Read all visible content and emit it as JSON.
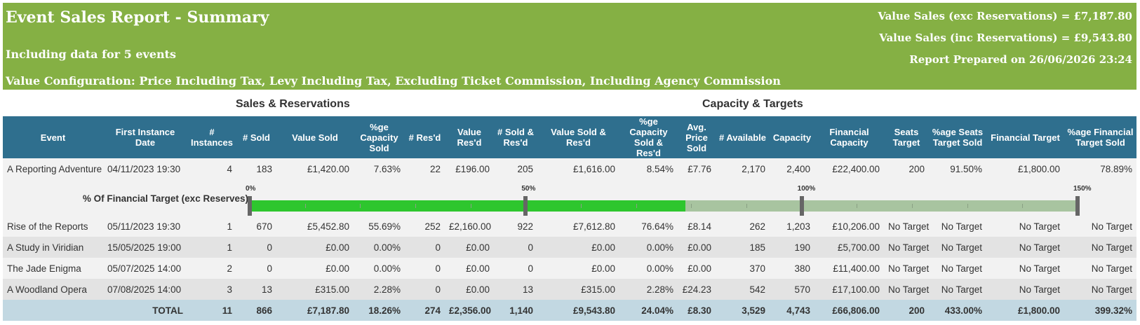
{
  "banner": {
    "title": "Event Sales Report - Summary",
    "subtitle": "Including data for 5 events",
    "config": "Value Configuration: Price Including Tax, Levy Including Tax, Excluding Ticket Commission, Including Agency Commission",
    "value_exc": "Value Sales (exc Reservations) = £7,187.80",
    "value_inc": "Value Sales (inc Reservations) = £9,543.80",
    "prepared": "Report Prepared on 26/06/2026 23:24",
    "color": "#85b044"
  },
  "groups": {
    "sales": "Sales & Reservations",
    "capacity": "Capacity & Targets"
  },
  "columns": [
    "Event",
    "First Instance Date",
    "# Instances",
    "# Sold",
    "Value Sold",
    "%ge Capacity Sold",
    "# Res'd",
    "Value Res'd",
    "# Sold & Res'd",
    "Value Sold & Res'd",
    "%ge Capacity Sold & Res'd",
    "Avg. Price Sold",
    "# Available",
    "Capacity",
    "Financial Capacity",
    "Seats Target",
    "%age Seats Target Sold",
    "Financial Target",
    "%age Financial Target Sold"
  ],
  "rows": [
    [
      "A Reporting Adventure",
      "04/11/2023 19:30",
      "4",
      "183",
      "£1,420.00",
      "7.63%",
      "22",
      "£196.00",
      "205",
      "£1,616.00",
      "8.54%",
      "£7.76",
      "2,170",
      "2,400",
      "£22,400.00",
      "200",
      "91.50%",
      "£1,800.00",
      "78.89%"
    ],
    [
      "Rise of the Reports",
      "05/11/2023 19:30",
      "1",
      "670",
      "£5,452.80",
      "55.69%",
      "252",
      "£2,160.00",
      "922",
      "£7,612.80",
      "76.64%",
      "£8.14",
      "262",
      "1,203",
      "£10,206.00",
      "No Target",
      "No Target",
      "No Target",
      "No Target"
    ],
    [
      "A Study in Viridian",
      "15/05/2025 19:00",
      "1",
      "0",
      "£0.00",
      "0.00%",
      "0",
      "£0.00",
      "0",
      "£0.00",
      "0.00%",
      "£0.00",
      "185",
      "190",
      "£5,700.00",
      "No Target",
      "No Target",
      "No Target",
      "No Target"
    ],
    [
      "The Jade Enigma",
      "05/07/2025 14:00",
      "2",
      "0",
      "£0.00",
      "0.00%",
      "0",
      "£0.00",
      "0",
      "£0.00",
      "0.00%",
      "£0.00",
      "370",
      "380",
      "£11,400.00",
      "No Target",
      "No Target",
      "No Target",
      "No Target"
    ],
    [
      "A Woodland Opera",
      "07/08/2025 14:00",
      "3",
      "13",
      "£315.00",
      "2.28%",
      "0",
      "£0.00",
      "13",
      "£315.00",
      "2.28%",
      "£24.23",
      "542",
      "570",
      "£17,100.00",
      "No Target",
      "No Target",
      "No Target",
      "No Target"
    ]
  ],
  "total": [
    "",
    "TOTAL",
    "11",
    "866",
    "£7,187.80",
    "18.26%",
    "274",
    "£2,356.00",
    "1,140",
    "£9,543.80",
    "24.04%",
    "£8.30",
    "3,529",
    "4,743",
    "£66,806.00",
    "200",
    "433.00%",
    "£1,800.00",
    "399.32%"
  ],
  "progress": {
    "label": "% Of Financial Target (exc Reserves)",
    "value_fraction": 0.7889,
    "max_fraction": 1.5,
    "ticks": [
      "0%",
      "50%",
      "100%",
      "150%"
    ],
    "fill_color": "#2ec62e",
    "track_color": "#a8c4a0"
  }
}
